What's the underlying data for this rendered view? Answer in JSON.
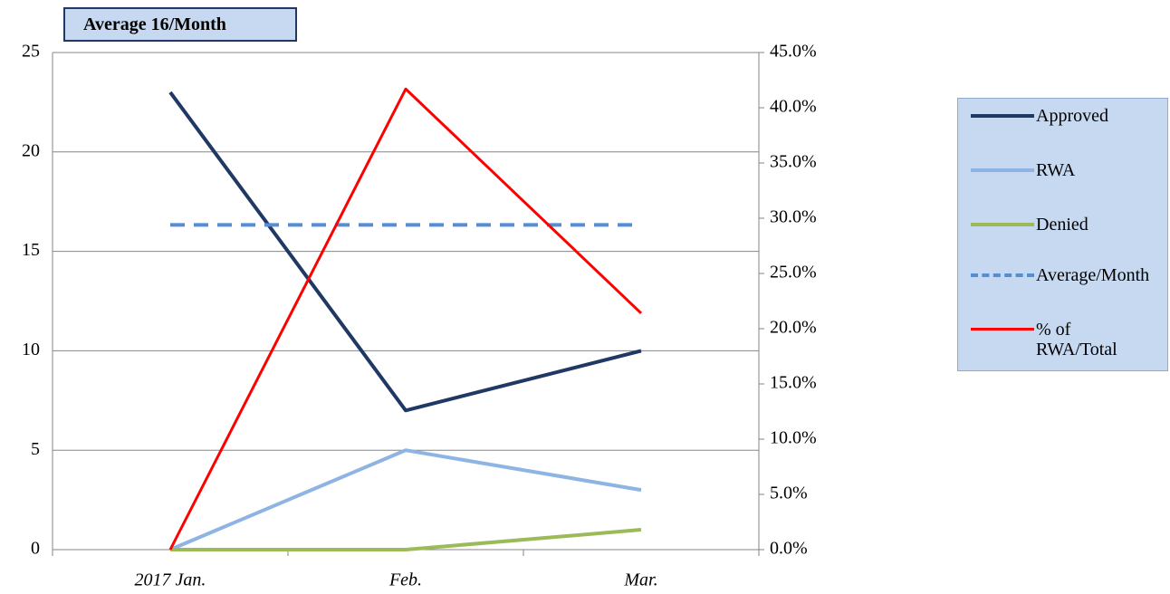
{
  "chart_data": {
    "type": "line",
    "title": "Average 16/Month",
    "categories": [
      "2017 Jan.",
      "Feb.",
      "Mar."
    ],
    "series": [
      {
        "name": "Approved",
        "color": "#1f3864",
        "values": [
          23,
          7,
          10
        ]
      },
      {
        "name": "RWA",
        "color": "#8db4e2",
        "values": [
          0,
          5,
          3
        ]
      },
      {
        "name": "Denied",
        "color": "#9bbb59",
        "values": [
          0,
          0,
          1
        ]
      },
      {
        "name": "Average/Month",
        "color": "#558ed5",
        "dashed": true,
        "values": [
          16.33,
          16.33,
          16.33
        ]
      },
      {
        "name": "% of RWA/Total",
        "color": "#ff0000",
        "axis": "y2",
        "values": [
          0,
          41.7,
          21.4
        ]
      }
    ],
    "ylim": [
      0,
      25
    ],
    "yticks": [
      0,
      5,
      10,
      15,
      20,
      25
    ],
    "y2lim": [
      0,
      45
    ],
    "y2ticks": [
      {
        "value": 0,
        "label": "0.0%"
      },
      {
        "value": 5,
        "label": "5.0%"
      },
      {
        "value": 10,
        "label": "10.0%"
      },
      {
        "value": 15,
        "label": "15.0%"
      },
      {
        "value": 20,
        "label": "20.0%"
      },
      {
        "value": 25,
        "label": "25.0%"
      },
      {
        "value": 30,
        "label": "30.0%"
      },
      {
        "value": 35,
        "label": "35.0%"
      },
      {
        "value": 40,
        "label": "40.0%"
      },
      {
        "value": 45,
        "label": "45.0%"
      }
    ],
    "grid": true,
    "legend": "right"
  }
}
